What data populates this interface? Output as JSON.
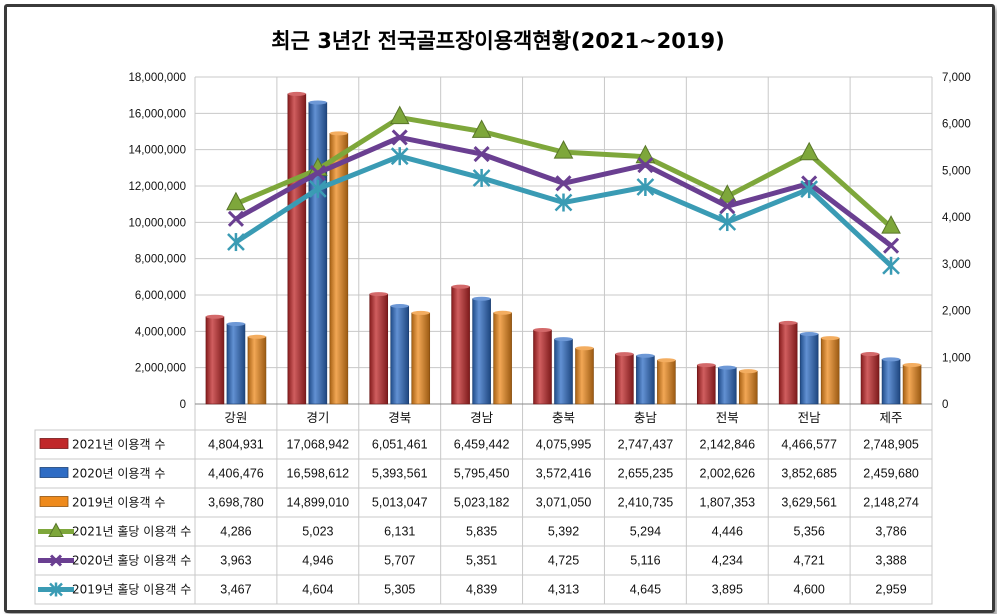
{
  "chart_data": {
    "type": "bar+line",
    "title": "최근 3년간 전국골프장이용객현황(2021~2019)",
    "categories": [
      "강원",
      "경기",
      "경북",
      "경남",
      "충북",
      "충남",
      "전북",
      "전남",
      "제주"
    ],
    "left_axis": {
      "ylim": [
        0,
        18000000
      ],
      "ticks": [
        "0",
        "2,000,000",
        "4,000,000",
        "6,000,000",
        "8,000,000",
        "10,000,000",
        "12,000,000",
        "14,000,000",
        "16,000,000",
        "18,000,000"
      ]
    },
    "right_axis": {
      "ylim": [
        0,
        7000
      ],
      "ticks": [
        "0",
        "1,000",
        "2,000",
        "3,000",
        "4,000",
        "5,000",
        "6,000",
        "7,000"
      ]
    },
    "bar_series": [
      {
        "name": "2021년 이용객 수",
        "color": "#c0282a",
        "values": [
          4804931,
          17068942,
          6051461,
          6459442,
          4075995,
          2747437,
          2142846,
          4466577,
          2748905
        ],
        "labels": [
          "4,804,931",
          "17,068,942",
          "6,051,461",
          "6,459,442",
          "4,075,995",
          "2,747,437",
          "2,142,846",
          "4,466,577",
          "2,748,905"
        ]
      },
      {
        "name": "2020년 이용객 수",
        "color": "#2e6cc4",
        "values": [
          4406476,
          16598612,
          5393561,
          5795450,
          3572416,
          2655235,
          2002626,
          3852685,
          2459680
        ],
        "labels": [
          "4,406,476",
          "16,598,612",
          "5,393,561",
          "5,795,450",
          "3,572,416",
          "2,655,235",
          "2,002,626",
          "3,852,685",
          "2,459,680"
        ]
      },
      {
        "name": "2019년 이용객 수",
        "color": "#ee8a1c",
        "values": [
          3698780,
          14899010,
          5013047,
          5023182,
          3071050,
          2410735,
          1807353,
          3629561,
          2148274
        ],
        "labels": [
          "3,698,780",
          "14,899,010",
          "5,013,047",
          "5,023,182",
          "3,071,050",
          "2,410,735",
          "1,807,353",
          "3,629,561",
          "2,148,274"
        ]
      }
    ],
    "line_series": [
      {
        "name": "2021년 홀당 이용객 수",
        "color": "#7ea73b",
        "marker": "triangle",
        "values": [
          4286,
          5023,
          6131,
          5835,
          5392,
          5294,
          4446,
          5356,
          3786
        ],
        "labels": [
          "4,286",
          "5,023",
          "6,131",
          "5,835",
          "5,392",
          "5,294",
          "4,446",
          "5,356",
          "3,786"
        ]
      },
      {
        "name": "2020년 홀당 이용객 수",
        "color": "#6a3f91",
        "marker": "x",
        "values": [
          3963,
          4946,
          5707,
          5351,
          4725,
          5116,
          4234,
          4721,
          3388
        ],
        "labels": [
          "3,963",
          "4,946",
          "5,707",
          "5,351",
          "4,725",
          "5,116",
          "4,234",
          "4,721",
          "3,388"
        ]
      },
      {
        "name": "2019년 홀당 이용객 수",
        "color": "#3a9bb4",
        "marker": "star",
        "values": [
          3467,
          4604,
          5305,
          4839,
          4313,
          4645,
          3895,
          4600,
          2959
        ],
        "labels": [
          "3,467",
          "4,604",
          "5,305",
          "4,839",
          "4,313",
          "4,645",
          "3,895",
          "4,600",
          "2,959"
        ]
      }
    ]
  }
}
